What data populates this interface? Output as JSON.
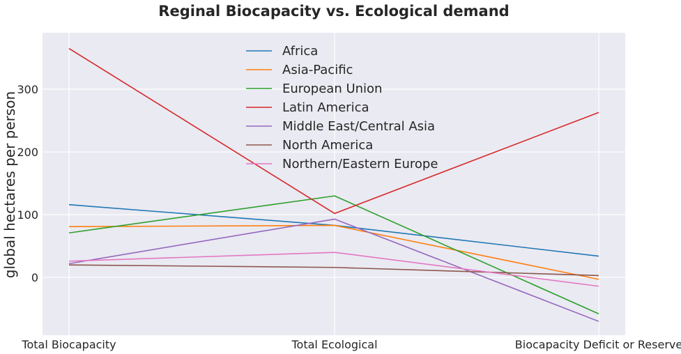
{
  "chart_data": {
    "type": "line",
    "title": "Reginal Biocapacity vs. Ecological demand",
    "xlabel": "",
    "ylabel": "global hectares per person",
    "categories": [
      "Total Biocapacity",
      "Total Ecological",
      "Biocapacity Deficit or Reserve"
    ],
    "ylim": [
      -92,
      390
    ],
    "yticks": [
      0,
      100,
      200,
      300
    ],
    "grid": true,
    "legend_position": "top-center",
    "series": [
      {
        "name": "Africa",
        "color": "#1f77b4",
        "values": [
          116,
          83,
          34
        ]
      },
      {
        "name": "Asia-Pacific",
        "color": "#ff7f0e",
        "values": [
          81,
          83,
          -3
        ]
      },
      {
        "name": "European Union",
        "color": "#2ca02c",
        "values": [
          71,
          130,
          -58
        ]
      },
      {
        "name": "Latin America",
        "color": "#d62728",
        "values": [
          365,
          102,
          263
        ]
      },
      {
        "name": "Middle East/Central Asia",
        "color": "#9467bd",
        "values": [
          22,
          93,
          -70
        ]
      },
      {
        "name": "North America",
        "color": "#8c564b",
        "values": [
          20,
          16,
          3
        ]
      },
      {
        "name": "Northern/Eastern Europe",
        "color": "#e377c2",
        "values": [
          26,
          40,
          -14
        ]
      }
    ]
  }
}
